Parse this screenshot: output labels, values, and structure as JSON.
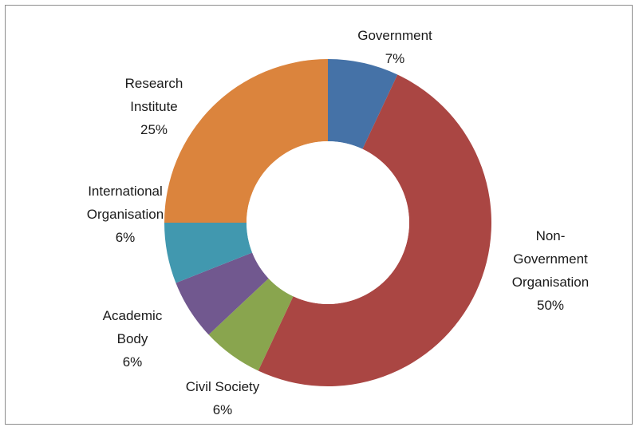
{
  "chart_data": {
    "type": "pie",
    "variant": "doughnut",
    "title": "",
    "legend": "none",
    "slices": [
      {
        "label_lines": [
          "Government"
        ],
        "value": 7,
        "value_label": "7%",
        "color": "#4572A7"
      },
      {
        "label_lines": [
          "Non-",
          "Government",
          "Organisation"
        ],
        "value": 50,
        "value_label": "50%",
        "color": "#AA4643"
      },
      {
        "label_lines": [
          "Civil Society"
        ],
        "value": 6,
        "value_label": "6%",
        "color": "#89A54E"
      },
      {
        "label_lines": [
          "Academic",
          "Body"
        ],
        "value": 6,
        "value_label": "6%",
        "color": "#71588F"
      },
      {
        "label_lines": [
          "International",
          "Organisation"
        ],
        "value": 6,
        "value_label": "6%",
        "color": "#4198AF"
      },
      {
        "label_lines": [
          "Research",
          "Institute"
        ],
        "value": 25,
        "value_label": "25%",
        "color": "#DB843D"
      }
    ]
  }
}
